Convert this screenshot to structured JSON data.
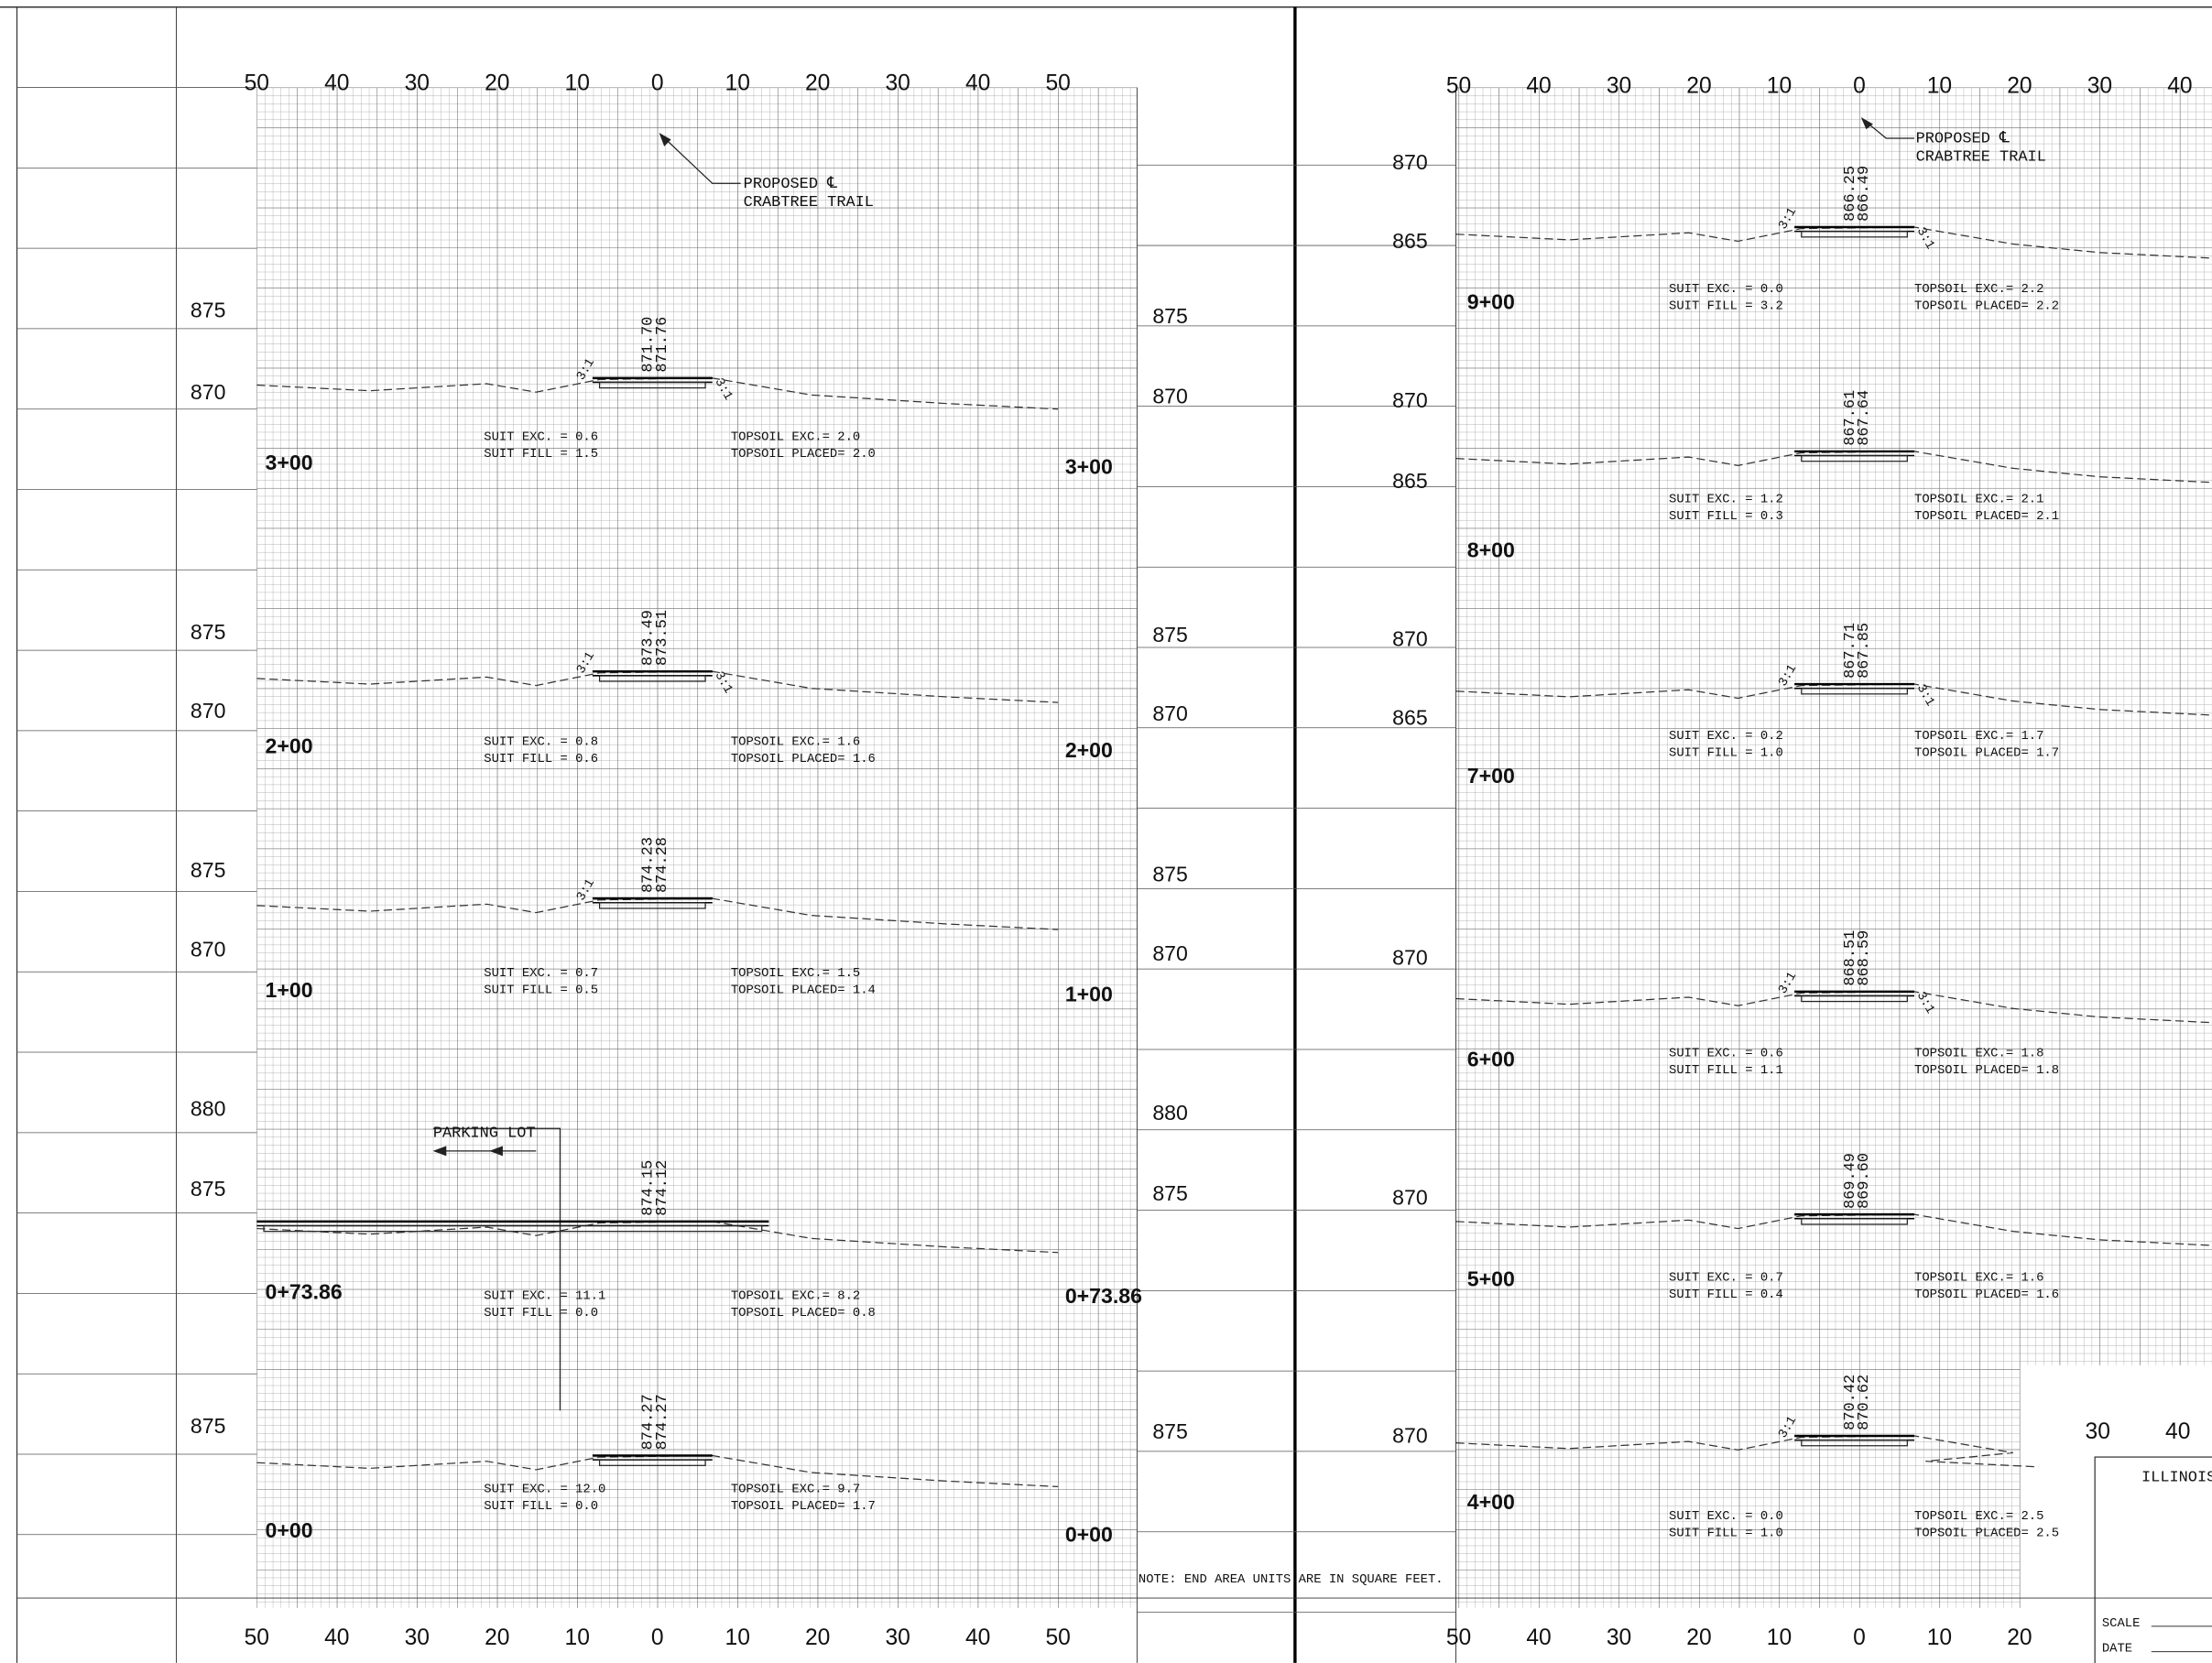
{
  "left_sheet": {
    "axis_top": [
      "50",
      "40",
      "30",
      "20",
      "10",
      "0",
      "10",
      "20",
      "30",
      "40",
      "50"
    ],
    "axis_bottom": [
      "50",
      "40",
      "30",
      "20",
      "10",
      "0",
      "10",
      "20",
      "30",
      "40",
      "50"
    ],
    "trail_note": [
      "PROPOSED ℄",
      "CRABTREE TRAIL"
    ],
    "parking_note": "PARKING LOT",
    "sections": [
      {
        "station": "3+00",
        "elev_left": [
          "875",
          "870"
        ],
        "elev_right": [
          "875",
          "870"
        ],
        "grades": [
          "871.70",
          "871.76"
        ],
        "slopes": [
          "3:1",
          "3:1"
        ],
        "suit": [
          "SUIT EXC. = 0.6",
          "SUIT FILL = 1.5"
        ],
        "topsoil": [
          "TOPSOIL EXC.= 2.0",
          "TOPSOIL PLACED= 2.0"
        ]
      },
      {
        "station": "2+00",
        "elev_left": [
          "875",
          "870"
        ],
        "elev_right": [
          "875",
          "870"
        ],
        "grades": [
          "873.49",
          "873.51"
        ],
        "slopes": [
          "3:1",
          "3:1"
        ],
        "suit": [
          "SUIT EXC. = 0.8",
          "SUIT FILL = 0.6"
        ],
        "topsoil": [
          "TOPSOIL EXC.= 1.6",
          "TOPSOIL PLACED= 1.6"
        ]
      },
      {
        "station": "1+00",
        "elev_left": [
          "875",
          "870"
        ],
        "elev_right": [
          "875",
          "870"
        ],
        "grades": [
          "874.23",
          "874.28"
        ],
        "slopes": [
          "3:1"
        ],
        "suit": [
          "SUIT EXC. = 0.7",
          "SUIT FILL = 0.5"
        ],
        "topsoil": [
          "TOPSOIL EXC.= 1.5",
          "TOPSOIL PLACED= 1.4"
        ]
      },
      {
        "station": "0+73.86",
        "elev_left": [
          "880",
          "875"
        ],
        "elev_right": [
          "880",
          "875"
        ],
        "grades": [
          "874.15",
          "874.12"
        ],
        "slopes": [],
        "suit": [
          "SUIT EXC. = 11.1",
          "SUIT FILL = 0.0"
        ],
        "topsoil": [
          "TOPSOIL EXC.= 8.2",
          "TOPSOIL PLACED= 0.8"
        ]
      },
      {
        "station": "0+00",
        "elev_left": [
          "875"
        ],
        "elev_right": [
          "875"
        ],
        "grades": [
          "874.27",
          "874.27"
        ],
        "slopes": [],
        "suit": [
          "SUIT EXC. = 12.0",
          "SUIT FILL = 0.0"
        ],
        "topsoil": [
          "TOPSOIL EXC.= 9.7",
          "TOPSOIL PLACED= 1.7"
        ]
      }
    ]
  },
  "right_sheet": {
    "axis_top": [
      "50",
      "40",
      "30",
      "20",
      "10",
      "0",
      "10",
      "20",
      "30",
      "40"
    ],
    "axis_bottom": [
      "50",
      "40",
      "30",
      "20",
      "10",
      "0",
      "10",
      "20"
    ],
    "axis_mid": [
      "30",
      "40"
    ],
    "trail_note": [
      "PROPOSED ℄",
      "CRABTREE TRAIL"
    ],
    "sections": [
      {
        "station": "9+00",
        "elev_left": [
          "870",
          "865"
        ],
        "grades": [
          "866.25",
          "866.49"
        ],
        "slopes": [
          "3:1",
          "3:1"
        ],
        "suit": [
          "SUIT EXC. = 0.0",
          "SUIT FILL = 3.2"
        ],
        "topsoil": [
          "TOPSOIL EXC.= 2.2",
          "TOPSOIL PLACED= 2.2"
        ]
      },
      {
        "station": "8+00",
        "elev_left": [
          "870",
          "865"
        ],
        "grades": [
          "867.61",
          "867.64"
        ],
        "slopes": [],
        "suit": [
          "SUIT EXC. = 1.2",
          "SUIT FILL = 0.3"
        ],
        "topsoil": [
          "TOPSOIL EXC.= 2.1",
          "TOPSOIL PLACED= 2.1"
        ]
      },
      {
        "station": "7+00",
        "elev_left": [
          "870",
          "865"
        ],
        "grades": [
          "867.71",
          "867.85"
        ],
        "slopes": [
          "3:1",
          "3:1"
        ],
        "suit": [
          "SUIT EXC. = 0.2",
          "SUIT FILL = 1.0"
        ],
        "topsoil": [
          "TOPSOIL EXC.= 1.7",
          "TOPSOIL PLACED= 1.7"
        ]
      },
      {
        "station": "6+00",
        "elev_left": [
          "870"
        ],
        "grades": [
          "868.51",
          "868.59"
        ],
        "slopes": [
          "3:1",
          "3:1"
        ],
        "suit": [
          "SUIT EXC. = 0.6",
          "SUIT FILL = 1.1"
        ],
        "topsoil": [
          "TOPSOIL EXC.= 1.8",
          "TOPSOIL PLACED= 1.8"
        ]
      },
      {
        "station": "5+00",
        "elev_left": [
          "870"
        ],
        "grades": [
          "869.49",
          "869.60"
        ],
        "slopes": [],
        "suit": [
          "SUIT EXC. = 0.7",
          "SUIT FILL = 0.4"
        ],
        "topsoil": [
          "TOPSOIL EXC.= 1.6",
          "TOPSOIL PLACED= 1.6"
        ]
      },
      {
        "station": "4+00",
        "elev_left": [
          "870"
        ],
        "grades": [
          "870.42",
          "870.62"
        ],
        "slopes": [
          "3:1"
        ],
        "suit": [
          "SUIT EXC. = 0.0",
          "SUIT FILL = 1.0"
        ],
        "topsoil": [
          "TOPSOIL EXC.= 2.5",
          "TOPSOIL PLACED= 2.5"
        ]
      }
    ]
  },
  "note": "NOTE: END AREA UNITS ARE IN SQUARE FEET.",
  "title_block": {
    "agency": "ILLINOIS",
    "scale_label": "SCALE",
    "date_label": "DATE"
  }
}
